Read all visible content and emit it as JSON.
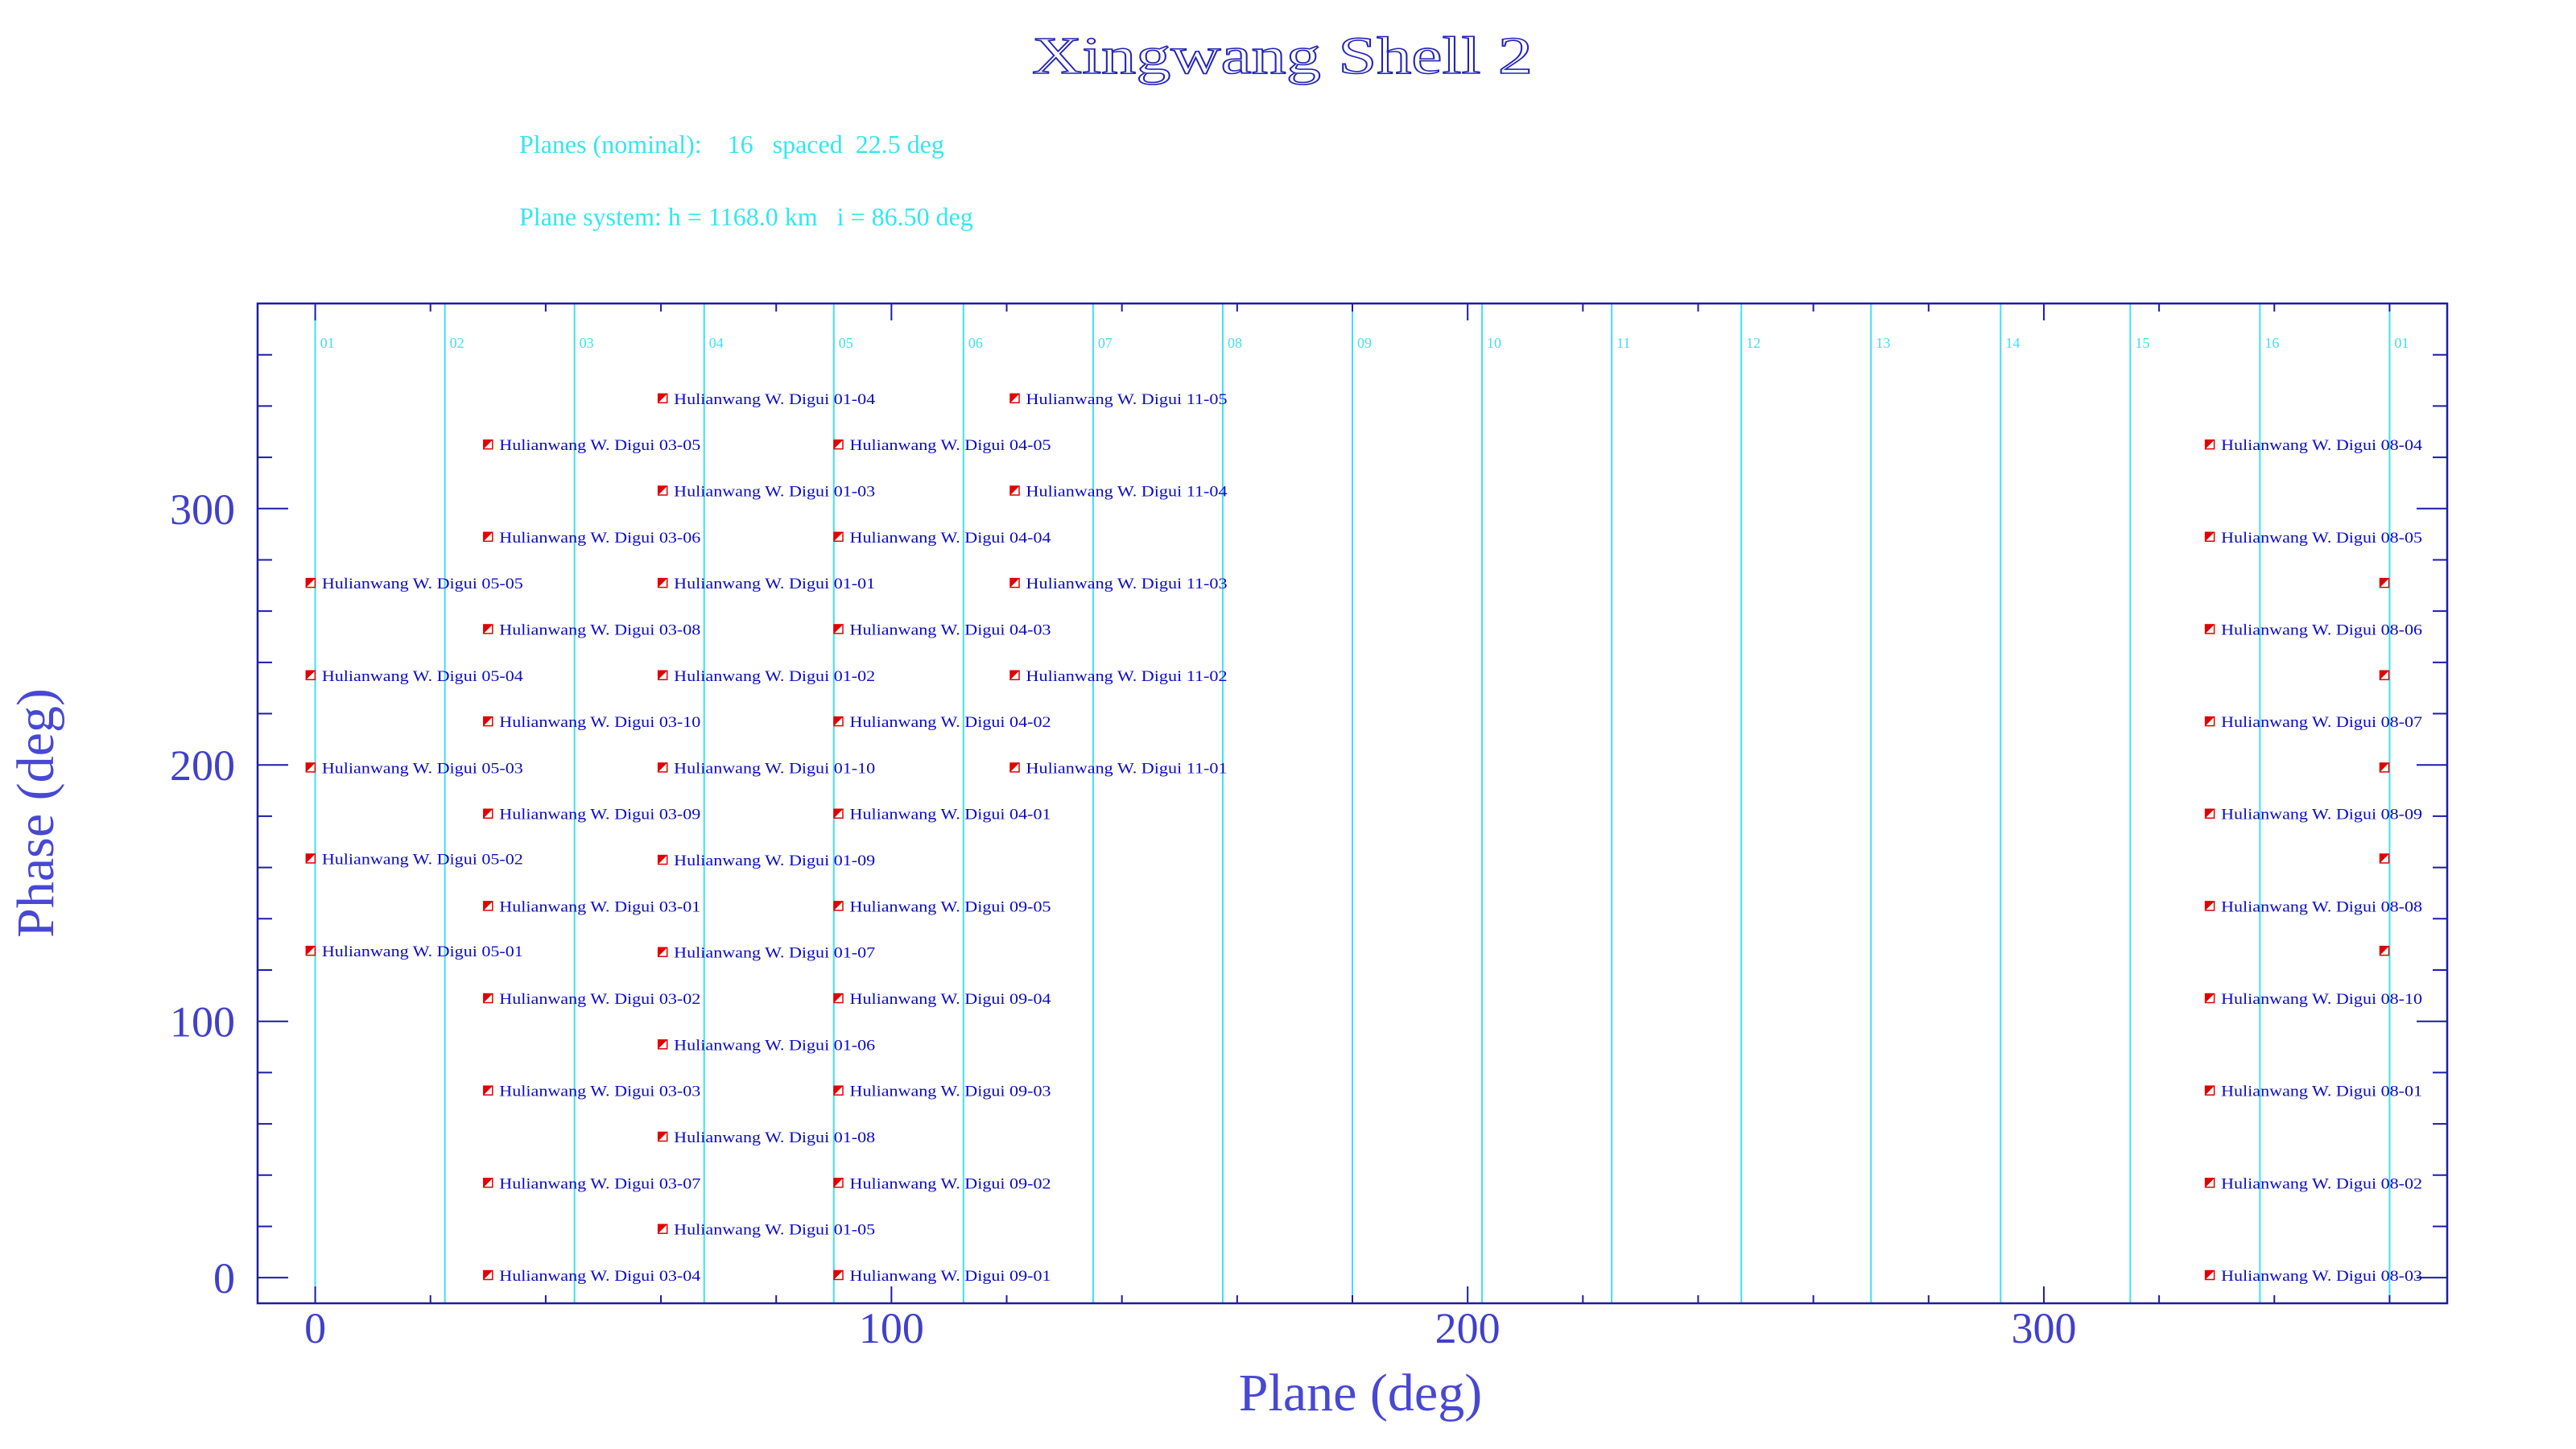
{
  "chart_data": {
    "type": "scatter",
    "title": "Xingwang Shell 2",
    "subtitle_lines": [
      "Planes (nominal):    16   spaced  22.5 deg",
      "Plane system: h = 1168.0 km   i = 86.50 deg"
    ],
    "xlabel": "Plane (deg)",
    "ylabel": "Phase (deg)",
    "xlim": [
      -10,
      370
    ],
    "ylim": [
      -10,
      380
    ],
    "xticks": [
      0,
      100,
      200,
      300
    ],
    "yticks": [
      0,
      100,
      200,
      300
    ],
    "grid": false,
    "colors": {
      "frame": "#1c1ca8",
      "labels": "#0a0ac8",
      "plane_lines": "#40e0ee",
      "marker": "#e00000"
    },
    "plane_lines": [
      {
        "label": "01",
        "x": 0
      },
      {
        "label": "02",
        "x": 22.5
      },
      {
        "label": "03",
        "x": 45
      },
      {
        "label": "04",
        "x": 67.5
      },
      {
        "label": "05",
        "x": 90
      },
      {
        "label": "06",
        "x": 112.5
      },
      {
        "label": "07",
        "x": 135
      },
      {
        "label": "08",
        "x": 157.5
      },
      {
        "label": "09",
        "x": 180
      },
      {
        "label": "10",
        "x": 202.5
      },
      {
        "label": "11",
        "x": 225
      },
      {
        "label": "12",
        "x": 247.5
      },
      {
        "label": "13",
        "x": 270
      },
      {
        "label": "14",
        "x": 292.5
      },
      {
        "label": "15",
        "x": 315
      },
      {
        "label": "16",
        "x": 337.5
      },
      {
        "label": "01",
        "x": 360
      }
    ],
    "points": [
      {
        "x": -0.8,
        "y": 271,
        "label": "Hulianwang W. Digui 05-05"
      },
      {
        "x": -0.8,
        "y": 235,
        "label": "Hulianwang W. Digui 05-04"
      },
      {
        "x": -0.8,
        "y": 199,
        "label": "Hulianwang W. Digui 05-03"
      },
      {
        "x": -0.8,
        "y": 163.5,
        "label": "Hulianwang W. Digui 05-02"
      },
      {
        "x": -0.8,
        "y": 127.5,
        "label": "Hulianwang W. Digui 05-01"
      },
      {
        "x": 30.0,
        "y": 325,
        "label": "Hulianwang W. Digui 03-05"
      },
      {
        "x": 30.0,
        "y": 289,
        "label": "Hulianwang W. Digui 03-06"
      },
      {
        "x": 30.0,
        "y": 253,
        "label": "Hulianwang W. Digui 03-08"
      },
      {
        "x": 30.0,
        "y": 217,
        "label": "Hulianwang W. Digui 03-10"
      },
      {
        "x": 30.0,
        "y": 181,
        "label": "Hulianwang W. Digui 03-09"
      },
      {
        "x": 30.0,
        "y": 145,
        "label": "Hulianwang W. Digui 03-01"
      },
      {
        "x": 30.0,
        "y": 109,
        "label": "Hulianwang W. Digui 03-02"
      },
      {
        "x": 30.0,
        "y": 73,
        "label": "Hulianwang W. Digui 03-03"
      },
      {
        "x": 30.0,
        "y": 37,
        "label": "Hulianwang W. Digui 03-07"
      },
      {
        "x": 30.0,
        "y": 1,
        "label": "Hulianwang W. Digui 03-04"
      },
      {
        "x": 60.3,
        "y": 343,
        "label": "Hulianwang W. Digui 01-04"
      },
      {
        "x": 60.3,
        "y": 307,
        "label": "Hulianwang W. Digui 01-03"
      },
      {
        "x": 60.3,
        "y": 271,
        "label": "Hulianwang W. Digui 01-01"
      },
      {
        "x": 60.3,
        "y": 235,
        "label": "Hulianwang W. Digui 01-02"
      },
      {
        "x": 60.3,
        "y": 199,
        "label": "Hulianwang W. Digui 01-10"
      },
      {
        "x": 60.3,
        "y": 163,
        "label": "Hulianwang W. Digui 01-09"
      },
      {
        "x": 60.3,
        "y": 127,
        "label": "Hulianwang W. Digui 01-07"
      },
      {
        "x": 60.3,
        "y": 91,
        "label": "Hulianwang W. Digui 01-06"
      },
      {
        "x": 60.3,
        "y": 55,
        "label": "Hulianwang W. Digui 01-08"
      },
      {
        "x": 60.3,
        "y": 19,
        "label": "Hulianwang W. Digui 01-05"
      },
      {
        "x": 90.8,
        "y": 325,
        "label": "Hulianwang W. Digui 04-05"
      },
      {
        "x": 90.8,
        "y": 289,
        "label": "Hulianwang W. Digui 04-04"
      },
      {
        "x": 90.8,
        "y": 253,
        "label": "Hulianwang W. Digui 04-03"
      },
      {
        "x": 90.8,
        "y": 217,
        "label": "Hulianwang W. Digui 04-02"
      },
      {
        "x": 90.8,
        "y": 181,
        "label": "Hulianwang W. Digui 04-01"
      },
      {
        "x": 90.8,
        "y": 145,
        "label": "Hulianwang W. Digui 09-05"
      },
      {
        "x": 90.8,
        "y": 109,
        "label": "Hulianwang W. Digui 09-04"
      },
      {
        "x": 90.8,
        "y": 73,
        "label": "Hulianwang W. Digui 09-03"
      },
      {
        "x": 90.8,
        "y": 37,
        "label": "Hulianwang W. Digui 09-02"
      },
      {
        "x": 90.8,
        "y": 1,
        "label": "Hulianwang W. Digui 09-01"
      },
      {
        "x": 121.4,
        "y": 343,
        "label": "Hulianwang W. Digui 11-05"
      },
      {
        "x": 121.4,
        "y": 307,
        "label": "Hulianwang W. Digui 11-04"
      },
      {
        "x": 121.4,
        "y": 271,
        "label": "Hulianwang W. Digui 11-03"
      },
      {
        "x": 121.4,
        "y": 235,
        "label": "Hulianwang W. Digui 11-02"
      },
      {
        "x": 121.4,
        "y": 199,
        "label": "Hulianwang W. Digui 11-01"
      },
      {
        "x": 328.8,
        "y": 325,
        "label": "Hulianwang W. Digui 08-04"
      },
      {
        "x": 328.8,
        "y": 289,
        "label": "Hulianwang W. Digui 08-05"
      },
      {
        "x": 328.8,
        "y": 253,
        "label": "Hulianwang W. Digui 08-06"
      },
      {
        "x": 328.8,
        "y": 217,
        "label": "Hulianwang W. Digui 08-07"
      },
      {
        "x": 328.8,
        "y": 181,
        "label": "Hulianwang W. Digui 08-09"
      },
      {
        "x": 328.8,
        "y": 145,
        "label": "Hulianwang W. Digui 08-08"
      },
      {
        "x": 328.8,
        "y": 109,
        "label": "Hulianwang W. Digui 08-10"
      },
      {
        "x": 328.8,
        "y": 73,
        "label": "Hulianwang W. Digui 08-01"
      },
      {
        "x": 328.8,
        "y": 37,
        "label": "Hulianwang W. Digui 08-02"
      },
      {
        "x": 328.8,
        "y": 1,
        "label": "Hulianwang W. Digui 08-03"
      },
      {
        "x": 359.1,
        "y": 271,
        "label": ""
      },
      {
        "x": 359.1,
        "y": 235,
        "label": ""
      },
      {
        "x": 359.1,
        "y": 199,
        "label": ""
      },
      {
        "x": 359.1,
        "y": 163.5,
        "label": ""
      },
      {
        "x": 359.1,
        "y": 127.5,
        "label": ""
      }
    ]
  }
}
